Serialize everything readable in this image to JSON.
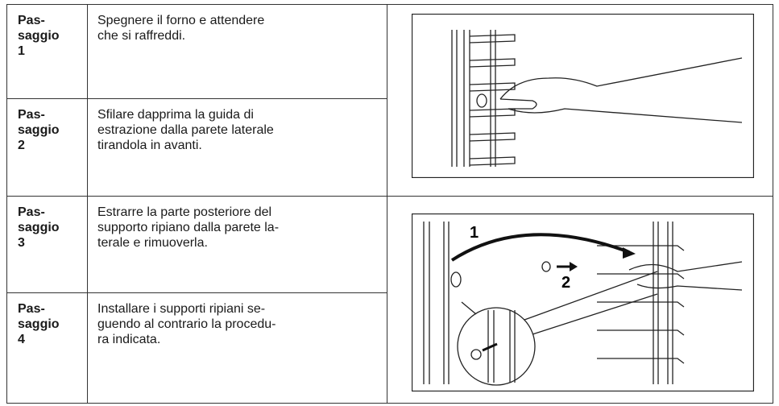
{
  "steps": [
    {
      "label_lines": [
        "Pas-",
        "saggio",
        "1"
      ],
      "text_lines": [
        "Spegnere il forno e attendere",
        "che si raffreddi."
      ]
    },
    {
      "label_lines": [
        "Pas-",
        "saggio",
        "2"
      ],
      "text_lines": [
        "Sfilare dapprima la guida di",
        "estrazione dalla parete laterale",
        "tirandola in avanti."
      ]
    },
    {
      "label_lines": [
        "Pas-",
        "saggio",
        "3"
      ],
      "text_lines": [
        "Estrarre la parte posteriore del",
        "supporto ripiano dalla parete la-",
        "terale e rimuoverla."
      ]
    },
    {
      "label_lines": [
        "Pas-",
        "saggio",
        "4"
      ],
      "text_lines": [
        "Installare i supporti ripiani se-",
        "guendo al contrario la procedu-",
        "ra indicata."
      ]
    }
  ],
  "figures": [
    {
      "labels": []
    },
    {
      "labels": [
        "1",
        "2"
      ]
    }
  ]
}
